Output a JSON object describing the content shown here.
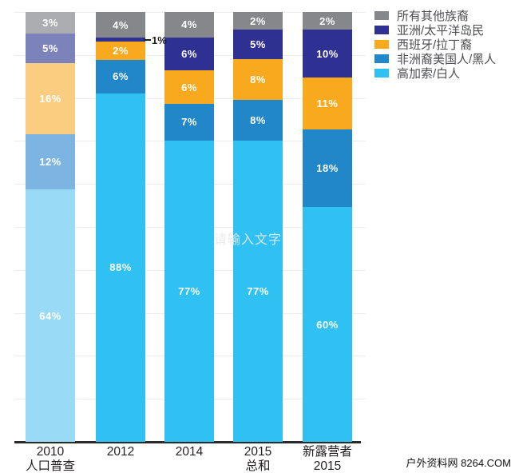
{
  "watermarks": {
    "center_text": "请输入文字",
    "bottom_right_text": "户外资料网 8264.COM"
  },
  "chart_data": {
    "type": "bar",
    "stacked": true,
    "unit": "%",
    "ylim": [
      0,
      100
    ],
    "grid": {
      "horizontal_interval_percent": 10,
      "color": "#ececec"
    },
    "legend_position": "top-right",
    "categories": [
      {
        "lines": [
          "2010",
          "人口普查"
        ]
      },
      {
        "lines": [
          "2012"
        ]
      },
      {
        "lines": [
          "2014"
        ]
      },
      {
        "lines": [
          "2015",
          "总和"
        ]
      },
      {
        "lines": [
          "新露营者",
          "2015"
        ]
      }
    ],
    "muted_category_index": 0,
    "series": [
      {
        "name": "高加索/白人",
        "color": "#2fc1f1",
        "muted_color": "#99dbf7",
        "values": [
          64,
          88,
          77,
          77,
          60
        ]
      },
      {
        "name": "非洲裔美国人/黑人",
        "color": "#2187c9",
        "muted_color": "#7cb5e2",
        "values": [
          12,
          6,
          7,
          8,
          18
        ]
      },
      {
        "name": "西班牙/拉丁裔",
        "color": "#f9a91d",
        "muted_color": "#fbcd80",
        "values": [
          16,
          2,
          6,
          8,
          11
        ]
      },
      {
        "name": "亚洲/太平洋岛民",
        "color": "#2e3192",
        "muted_color": "#7c83ba",
        "values": [
          5,
          1,
          6,
          5,
          10
        ]
      },
      {
        "name": "所有其他族裔",
        "color": "#85878a",
        "muted_color": "#abadb0",
        "values": [
          3,
          4,
          4,
          2,
          2
        ]
      }
    ],
    "outside_annotation": {
      "category_index": 1,
      "series_index": 3,
      "label": "1%",
      "leader": true
    }
  }
}
